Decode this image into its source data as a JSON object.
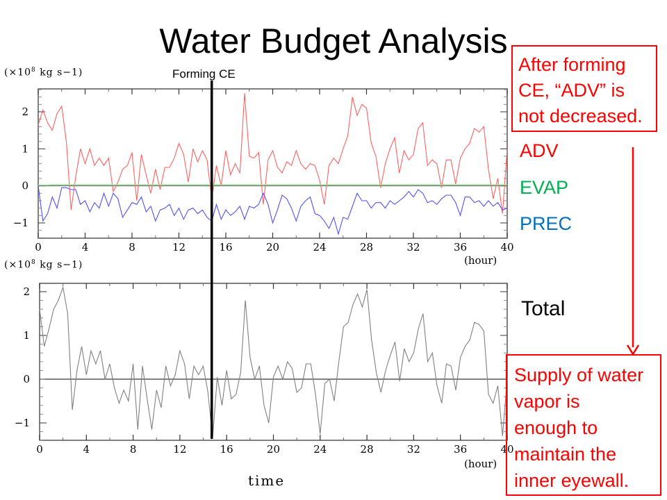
{
  "slide": {
    "title": "Water Budget Analysis",
    "forming_ce_label": "Forming CE",
    "time_label": "time",
    "total_label": "Total",
    "note_top": [
      "After forming",
      "CE, “ADV” is",
      "not decreased."
    ],
    "note_bottom": [
      "Supply of water",
      "vapor is",
      "enough to",
      "maintain the",
      "inner eyewall."
    ],
    "legend": [
      {
        "label": "ADV",
        "color": "#ff0000"
      },
      {
        "label": "EVAP",
        "color": "#00b050"
      },
      {
        "label": "PREC",
        "color": "#0070c0"
      }
    ],
    "annotation_color": "#ff0000"
  },
  "chart_data": [
    {
      "type": "line",
      "title": "",
      "unit_label": "(×10^8 kg s−1)",
      "xlabel": "(hour)",
      "ylabel": "(×10^8 kg s−1)",
      "xlim": [
        0,
        40
      ],
      "ylim": [
        -1.4,
        2.6
      ],
      "xticks": [
        "0",
        "4",
        "8",
        "12",
        "16",
        "20",
        "24",
        "28",
        "32",
        "36",
        "40"
      ],
      "yticks": [
        "2",
        "1",
        "0",
        "−1"
      ],
      "ytick_values": [
        2,
        1,
        0,
        -1
      ],
      "marker_x": 14.8,
      "marker_label": "Forming CE",
      "zero_line": true,
      "x": [
        0,
        0.4,
        0.8,
        1.2,
        1.6,
        2.0,
        2.4,
        2.8,
        3.2,
        3.6,
        4.0,
        4.4,
        4.8,
        5.2,
        5.6,
        6.0,
        6.4,
        6.8,
        7.2,
        7.6,
        8.0,
        8.4,
        8.8,
        9.2,
        9.6,
        10.0,
        10.4,
        10.8,
        11.2,
        11.6,
        12.0,
        12.4,
        12.8,
        13.2,
        13.6,
        14.0,
        14.4,
        14.8,
        15.2,
        15.6,
        16.0,
        16.4,
        16.8,
        17.2,
        17.6,
        18.0,
        18.4,
        18.8,
        19.2,
        19.6,
        20.0,
        20.4,
        20.8,
        21.2,
        21.6,
        22.0,
        22.4,
        22.8,
        23.2,
        23.6,
        24.0,
        24.4,
        24.8,
        25.2,
        25.6,
        26.0,
        26.4,
        26.8,
        27.2,
        27.6,
        28.0,
        28.4,
        28.8,
        29.2,
        29.6,
        30.0,
        30.4,
        30.8,
        31.2,
        31.6,
        32.0,
        32.4,
        32.8,
        33.2,
        33.6,
        34.0,
        34.4,
        34.8,
        35.2,
        35.6,
        36.0,
        36.4,
        36.8,
        37.2,
        37.6,
        38.0,
        38.4,
        38.8,
        39.2,
        39.6,
        40.0
      ],
      "series": [
        {
          "name": "ADV",
          "color": "#ff6060",
          "values": [
            1.65,
            2.05,
            1.7,
            1.5,
            1.95,
            2.15,
            1.2,
            -0.65,
            0.25,
            1.0,
            0.6,
            1.0,
            0.55,
            0.75,
            0.55,
            0.75,
            -0.15,
            0.1,
            0.45,
            0.55,
            0.9,
            -0.4,
            0.85,
            0.3,
            -0.2,
            0.45,
            -0.1,
            0.5,
            0.5,
            0.75,
            1.15,
            0.85,
            0.1,
            1.0,
            0.65,
            0.95,
            0.7,
            -0.35,
            0.55,
            0.0,
            0.95,
            0.3,
            0.6,
            0.35,
            2.5,
            0.8,
            0.75,
            0.9,
            -0.5,
            0.7,
            0.95,
            0.5,
            0.35,
            0.65,
            0.55,
            0.95,
            0.6,
            0.45,
            0.6,
            0.55,
            0.15,
            -0.5,
            0.55,
            0.75,
            0.6,
            1.0,
            1.35,
            2.4,
            1.9,
            2.2,
            2.1,
            1.15,
            0.8,
            -0.05,
            0.6,
            1.0,
            1.3,
            0.35,
            0.95,
            0.7,
            0.85,
            1.55,
            1.7,
            0.55,
            0.7,
            0.6,
            -0.05,
            0.7,
            0.7,
            0.05,
            0.75,
            1.0,
            1.15,
            1.55,
            1.45,
            1.6,
            0.45,
            -0.35,
            0.2,
            -0.75,
            1.0
          ]
        },
        {
          "name": "EVAP",
          "color": "#90e090",
          "values": [
            0.02,
            0.02,
            0.02,
            0.03,
            0.03,
            0.03,
            0.03,
            0.03,
            0.03,
            0.03,
            0.03,
            0.03,
            0.03,
            0.03,
            0.03,
            0.03,
            0.03,
            0.03,
            0.03,
            0.03,
            0.03,
            0.03,
            0.03,
            0.03,
            0.03,
            0.03,
            0.03,
            0.03,
            0.03,
            0.03,
            0.03,
            0.03,
            0.03,
            0.03,
            0.03,
            0.03,
            0.03,
            0.03,
            0.03,
            0.03,
            0.03,
            0.03,
            0.03,
            0.03,
            0.03,
            0.03,
            0.03,
            0.03,
            0.03,
            0.03,
            0.03,
            0.03,
            0.03,
            0.03,
            0.03,
            0.03,
            0.03,
            0.03,
            0.03,
            0.03,
            0.03,
            0.03,
            0.03,
            0.03,
            0.03,
            0.03,
            0.03,
            0.03,
            0.03,
            0.03,
            0.03,
            0.03,
            0.03,
            0.03,
            0.03,
            0.03,
            0.03,
            0.03,
            0.03,
            0.03,
            0.03,
            0.03,
            0.03,
            0.03,
            0.03,
            0.03,
            0.03,
            0.03,
            0.03,
            0.03,
            0.03,
            0.03,
            0.03,
            0.03,
            0.03,
            0.03,
            0.03,
            0.03,
            0.03,
            0.03,
            0.03
          ]
        },
        {
          "name": "PREC",
          "color": "#5050ff",
          "values": [
            0.0,
            -0.95,
            -0.75,
            -0.3,
            -0.6,
            -0.05,
            -0.05,
            -0.1,
            -0.1,
            -0.5,
            -0.4,
            -0.7,
            -0.45,
            -0.6,
            -0.2,
            -0.55,
            -0.2,
            -0.35,
            -0.85,
            -0.65,
            -0.45,
            -0.5,
            -0.3,
            -0.7,
            -0.55,
            -0.95,
            -0.65,
            -0.6,
            -0.5,
            -0.8,
            -0.6,
            -0.9,
            -0.65,
            -0.6,
            -0.75,
            -0.65,
            -0.85,
            -0.95,
            -0.5,
            -0.9,
            -0.65,
            -0.8,
            -0.7,
            -0.55,
            -0.9,
            -0.55,
            -0.6,
            -0.5,
            -0.2,
            -0.5,
            -1.0,
            -0.65,
            -0.25,
            -0.35,
            -0.6,
            -0.95,
            -0.55,
            -0.4,
            -0.3,
            -0.75,
            -0.8,
            -0.95,
            -1.15,
            -0.85,
            -1.3,
            -0.85,
            -0.9,
            -0.55,
            -0.2,
            -0.4,
            -0.4,
            -0.6,
            -0.45,
            -0.45,
            -0.6,
            -0.4,
            -0.5,
            -0.4,
            -0.3,
            -0.15,
            -0.3,
            -0.1,
            -0.2,
            -0.45,
            -0.4,
            -0.5,
            -0.35,
            -0.25,
            -0.25,
            -0.45,
            -0.8,
            -0.3,
            -0.3,
            -0.45,
            -0.4,
            -0.55,
            -0.4,
            -0.55,
            -0.45,
            -0.65,
            -0.6
          ]
        }
      ]
    },
    {
      "type": "line",
      "title": "",
      "unit_label": "(×10^8 kg s−1)",
      "xlabel": "time (hour)",
      "ylabel": "(×10^8 kg s−1)",
      "xlim": [
        0,
        40
      ],
      "ylim": [
        -1.4,
        2.2
      ],
      "xticks": [
        "0",
        "4",
        "8",
        "12",
        "16",
        "20",
        "24",
        "28",
        "32",
        "36",
        "40"
      ],
      "yticks": [
        "2",
        "1",
        "0",
        "−1"
      ],
      "ytick_values": [
        2,
        1,
        0,
        -1
      ],
      "marker_x": 14.8,
      "zero_line": true,
      "x": [
        0,
        0.4,
        0.8,
        1.2,
        1.6,
        2.0,
        2.4,
        2.8,
        3.2,
        3.6,
        4.0,
        4.4,
        4.8,
        5.2,
        5.6,
        6.0,
        6.4,
        6.8,
        7.2,
        7.6,
        8.0,
        8.4,
        8.8,
        9.2,
        9.6,
        10.0,
        10.4,
        10.8,
        11.2,
        11.6,
        12.0,
        12.4,
        12.8,
        13.2,
        13.6,
        14.0,
        14.4,
        14.8,
        15.2,
        15.6,
        16.0,
        16.4,
        16.8,
        17.2,
        17.6,
        18.0,
        18.4,
        18.8,
        19.2,
        19.6,
        20.0,
        20.4,
        20.8,
        21.2,
        21.6,
        22.0,
        22.4,
        22.8,
        23.2,
        23.6,
        24.0,
        24.4,
        24.8,
        25.2,
        25.6,
        26.0,
        26.4,
        26.8,
        27.2,
        27.6,
        28.0,
        28.4,
        28.8,
        29.2,
        29.6,
        30.0,
        30.4,
        30.8,
        31.2,
        31.6,
        32.0,
        32.4,
        32.8,
        33.2,
        33.6,
        34.0,
        34.4,
        34.8,
        35.2,
        35.6,
        36.0,
        36.4,
        36.8,
        37.2,
        37.6,
        38.0,
        38.4,
        38.8,
        39.2,
        39.6,
        40.0
      ],
      "series": [
        {
          "name": "Total",
          "color": "#808080",
          "values": [
            1.6,
            0.75,
            1.15,
            1.6,
            1.8,
            2.1,
            1.5,
            -0.7,
            0.2,
            0.75,
            0.1,
            0.65,
            0.35,
            0.65,
            0.0,
            0.35,
            -0.2,
            -0.55,
            -0.25,
            -0.5,
            0.35,
            -1.15,
            0.3,
            -0.45,
            -1.15,
            -0.25,
            -0.65,
            0.3,
            -0.15,
            0.1,
            0.65,
            0.35,
            -0.45,
            0.3,
            0.1,
            0.3,
            -0.3,
            -1.35,
            0.05,
            -0.6,
            0.2,
            -0.45,
            -0.35,
            0.15,
            1.8,
            0.5,
            0.0,
            0.3,
            -0.6,
            -1.0,
            0.05,
            0.3,
            0.0,
            0.4,
            0.25,
            -0.3,
            -0.2,
            0.35,
            0.35,
            -0.35,
            -1.25,
            -0.1,
            0.0,
            -0.5,
            0.4,
            1.2,
            1.3,
            1.7,
            1.95,
            1.65,
            2.05,
            0.9,
            0.15,
            -0.3,
            0.2,
            0.55,
            0.85,
            -0.05,
            0.7,
            0.4,
            0.6,
            1.15,
            1.5,
            0.4,
            0.6,
            -0.15,
            -0.55,
            0.35,
            0.3,
            -0.25,
            0.5,
            0.75,
            0.9,
            1.3,
            1.25,
            1.1,
            -0.35,
            -0.55,
            -0.15,
            -1.3,
            0.0
          ]
        }
      ]
    }
  ]
}
